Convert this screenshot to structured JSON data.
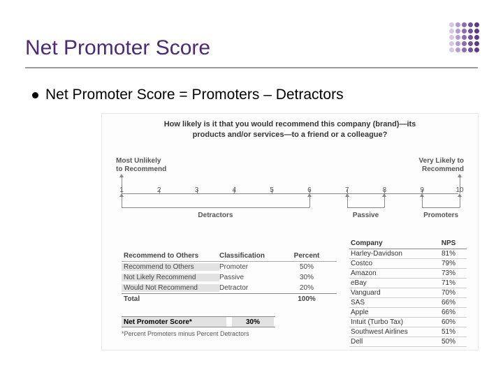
{
  "title": "Net Promoter Score",
  "title_color": "#4b2b78",
  "bullet_text": "Net Promoter Score = Promoters – Detractors",
  "logo": {
    "rows": 5,
    "cols": 5,
    "col_colors": [
      "#d5c7e6",
      "#b39bd1",
      "#8b6bb3",
      "#6e509c",
      "#5a3b87"
    ]
  },
  "figure": {
    "question_line1": "How likely is it that you would recommend this company (brand)—its",
    "question_line2": "products and/or services—to a friend or a colleague?",
    "scale": {
      "left_label_l1": "Most Unlikely",
      "left_label_l2": "to Recommend",
      "right_label_l1": "Very Likely to",
      "right_label_l2": "Recommend",
      "numbers": [
        "1",
        "2",
        "3",
        "4",
        "5",
        "6",
        "7",
        "8",
        "9",
        "10"
      ],
      "groups": {
        "detractors": {
          "label": "Detractors",
          "start": 1,
          "end": 6
        },
        "passive": {
          "label": "Passive",
          "start": 7,
          "end": 8
        },
        "promoters": {
          "label": "Promoters",
          "start": 9,
          "end": 10
        }
      }
    },
    "classification": {
      "headers": [
        "Recommend to Others",
        "Classification",
        "Percent"
      ],
      "rows": [
        {
          "rec": "Recommend to Others",
          "cls": "Promoter",
          "pct": "50%",
          "shaded": true
        },
        {
          "rec": "Not Likely Recommend",
          "cls": "Passive",
          "pct": "30%",
          "shaded": true
        },
        {
          "rec": "Would Not Recommend",
          "cls": "Detractor",
          "pct": "20%",
          "shaded": true
        }
      ],
      "total_label": "Total",
      "total_pct": "100%"
    },
    "nps": {
      "label": "Net Promoter Score*",
      "value": "30%",
      "note": "*Percent Promoters minus Percent Detractors"
    },
    "companies": {
      "headers": [
        "Company",
        "NPS"
      ],
      "rows": [
        {
          "name": "Harley-Davidson",
          "nps": "81%"
        },
        {
          "name": "Costco",
          "nps": "79%"
        },
        {
          "name": "Amazon",
          "nps": "73%"
        },
        {
          "name": "eBay",
          "nps": "71%"
        },
        {
          "name": "Vanguard",
          "nps": "70%"
        },
        {
          "name": "SAS",
          "nps": "66%"
        },
        {
          "name": "Apple",
          "nps": "66%"
        },
        {
          "name": "Intuit (Turbo Tax)",
          "nps": "60%"
        },
        {
          "name": "Southwest Airlines",
          "nps": "51%"
        },
        {
          "name": "Dell",
          "nps": "50%"
        }
      ]
    }
  }
}
